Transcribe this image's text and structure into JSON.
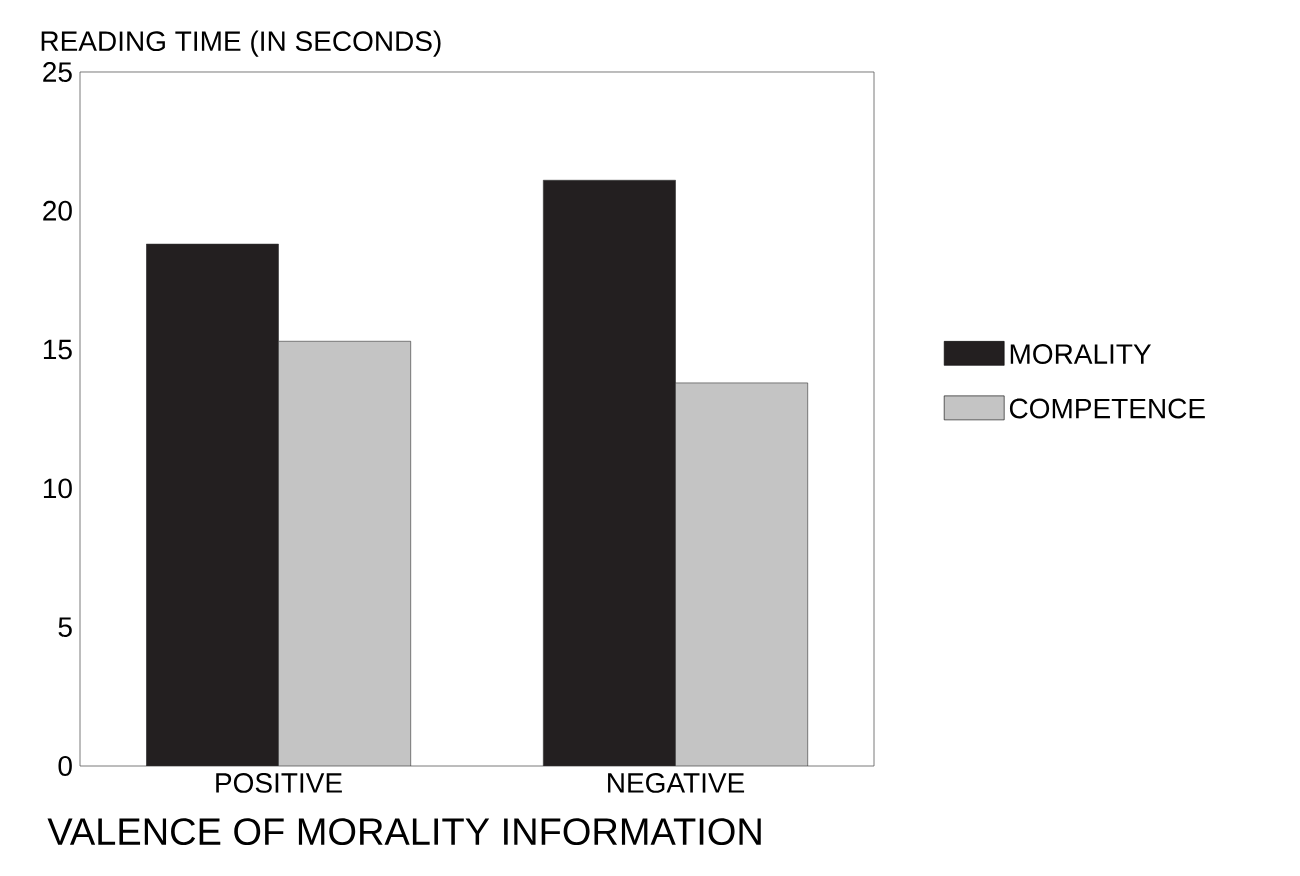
{
  "chart_data": {
    "type": "bar",
    "xlabel": "VALENCE OF MORALITY INFORMATION",
    "ylabel": "READING TIME (IN SECONDS)",
    "categories": [
      "POSITIVE",
      "NEGATIVE"
    ],
    "series": [
      {
        "name": "MORALITY",
        "color": "#231f20",
        "values": [
          18.8,
          21.1
        ]
      },
      {
        "name": "COMPETENCE",
        "color": "#c4c4c4",
        "values": [
          15.3,
          13.8
        ]
      }
    ],
    "ylim": [
      0,
      25
    ],
    "yticks": [
      0,
      5,
      10,
      15,
      20,
      25
    ],
    "grid": false,
    "legend": "right"
  }
}
